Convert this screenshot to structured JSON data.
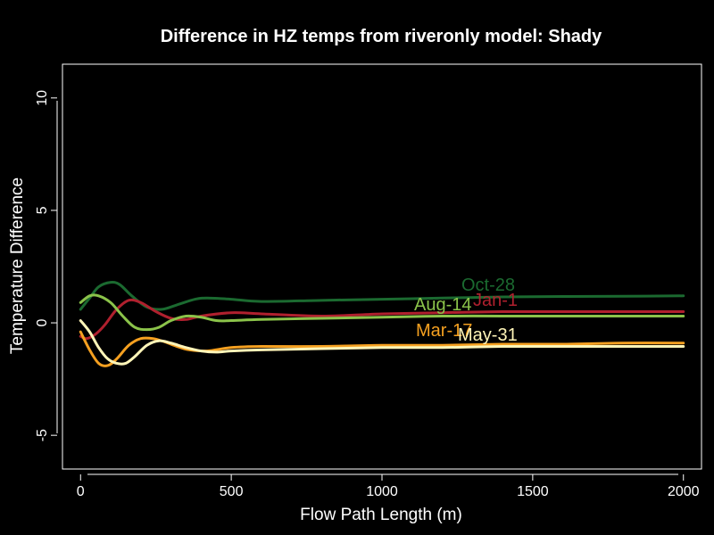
{
  "chart_data": {
    "type": "line",
    "title": "Difference in HZ temps from riveronly model: Shady",
    "xlabel": "Flow Path Length (m)",
    "ylabel": "Temperature Difference",
    "xlim": [
      -60,
      2060
    ],
    "ylim": [
      -6.5,
      11.5
    ],
    "xticks": [
      0,
      500,
      1000,
      1500,
      2000
    ],
    "yticks": [
      -5,
      0,
      5,
      10
    ],
    "xtick_labels": [
      "0",
      "500",
      "1000",
      "1500",
      "2000"
    ],
    "ytick_labels": [
      "-5",
      "0",
      "5",
      "10"
    ],
    "grid": false,
    "legend": "none",
    "series": [
      {
        "name": "Oct-28",
        "color": "#1b6a30",
        "x": [
          0,
          30,
          60,
          100,
          130,
          170,
          220,
          270,
          320,
          380,
          420,
          500,
          600,
          800,
          1000,
          1200,
          1400,
          1600,
          1800,
          2000
        ],
        "values": [
          0.6,
          1.1,
          1.6,
          1.8,
          1.7,
          1.2,
          0.7,
          0.6,
          0.8,
          1.05,
          1.1,
          1.05,
          0.95,
          1.0,
          1.05,
          1.1,
          1.15,
          1.17,
          1.18,
          1.2
        ]
      },
      {
        "name": "Jan-1",
        "color": "#b0202e",
        "x": [
          0,
          20,
          50,
          80,
          120,
          160,
          200,
          250,
          300,
          350,
          400,
          500,
          600,
          800,
          1000,
          1200,
          1400,
          1600,
          1800,
          2000
        ],
        "values": [
          -0.6,
          -0.7,
          -0.5,
          -0.1,
          0.6,
          1.0,
          0.9,
          0.5,
          0.2,
          0.15,
          0.3,
          0.45,
          0.4,
          0.3,
          0.4,
          0.45,
          0.5,
          0.5,
          0.5,
          0.5
        ]
      },
      {
        "name": "Aug-14",
        "color": "#8bc34a",
        "x": [
          0,
          30,
          60,
          100,
          140,
          180,
          220,
          260,
          300,
          350,
          400,
          450,
          500,
          600,
          800,
          1000,
          1200,
          1400,
          1600,
          1800,
          2000
        ],
        "values": [
          0.9,
          1.2,
          1.2,
          0.9,
          0.3,
          -0.2,
          -0.3,
          -0.2,
          0.1,
          0.3,
          0.25,
          0.1,
          0.1,
          0.15,
          0.2,
          0.25,
          0.3,
          0.3,
          0.3,
          0.3,
          0.3
        ]
      },
      {
        "name": "Mar-17",
        "color": "#f5a020",
        "x": [
          0,
          30,
          60,
          90,
          120,
          160,
          200,
          240,
          280,
          320,
          360,
          420,
          500,
          600,
          800,
          1000,
          1200,
          1400,
          1600,
          1800,
          2000
        ],
        "values": [
          -0.4,
          -1.2,
          -1.8,
          -1.9,
          -1.6,
          -1.0,
          -0.7,
          -0.7,
          -0.85,
          -1.05,
          -1.2,
          -1.25,
          -1.1,
          -1.05,
          -1.05,
          -1.0,
          -1.0,
          -0.95,
          -0.95,
          -0.9,
          -0.9
        ]
      },
      {
        "name": "May-31",
        "color": "#fff5b8",
        "x": [
          0,
          30,
          60,
          90,
          120,
          150,
          180,
          220,
          260,
          300,
          350,
          400,
          450,
          500,
          600,
          800,
          1000,
          1200,
          1400,
          1600,
          1800,
          2000
        ],
        "values": [
          0.1,
          -0.4,
          -1.1,
          -1.6,
          -1.8,
          -1.8,
          -1.5,
          -1.0,
          -0.8,
          -0.9,
          -1.1,
          -1.25,
          -1.3,
          -1.25,
          -1.2,
          -1.15,
          -1.1,
          -1.1,
          -1.05,
          -1.05,
          -1.05,
          -1.05
        ]
      }
    ]
  }
}
